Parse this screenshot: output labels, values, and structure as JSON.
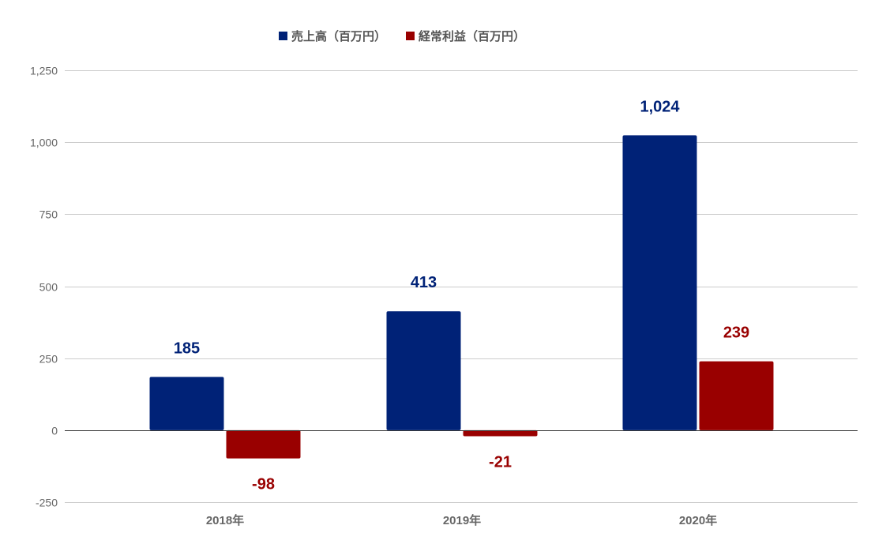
{
  "colors": {
    "sales": "#002277",
    "profit": "#990000",
    "grid": "#cccccc",
    "zero_line": "#333333",
    "tick_text": "#666666"
  },
  "chart_data": {
    "type": "bar",
    "categories": [
      "2018年",
      "2019年",
      "2020年"
    ],
    "series": [
      {
        "name": "売上高（百万円）",
        "values": [
          185,
          413,
          1024
        ],
        "labels": [
          "185",
          "413",
          "1,024"
        ]
      },
      {
        "name": "経常利益（百万円）",
        "values": [
          -98,
          -21,
          239
        ],
        "labels": [
          "-98",
          "-21",
          "239"
        ]
      }
    ],
    "y_ticks": [
      -250,
      0,
      250,
      500,
      750,
      1000,
      1250
    ],
    "y_tick_labels": [
      "-250",
      "0",
      "250",
      "500",
      "750",
      "1,000",
      "1,250"
    ],
    "ylim": [
      -250,
      1250
    ],
    "grid": true,
    "legend_position": "top-center"
  }
}
